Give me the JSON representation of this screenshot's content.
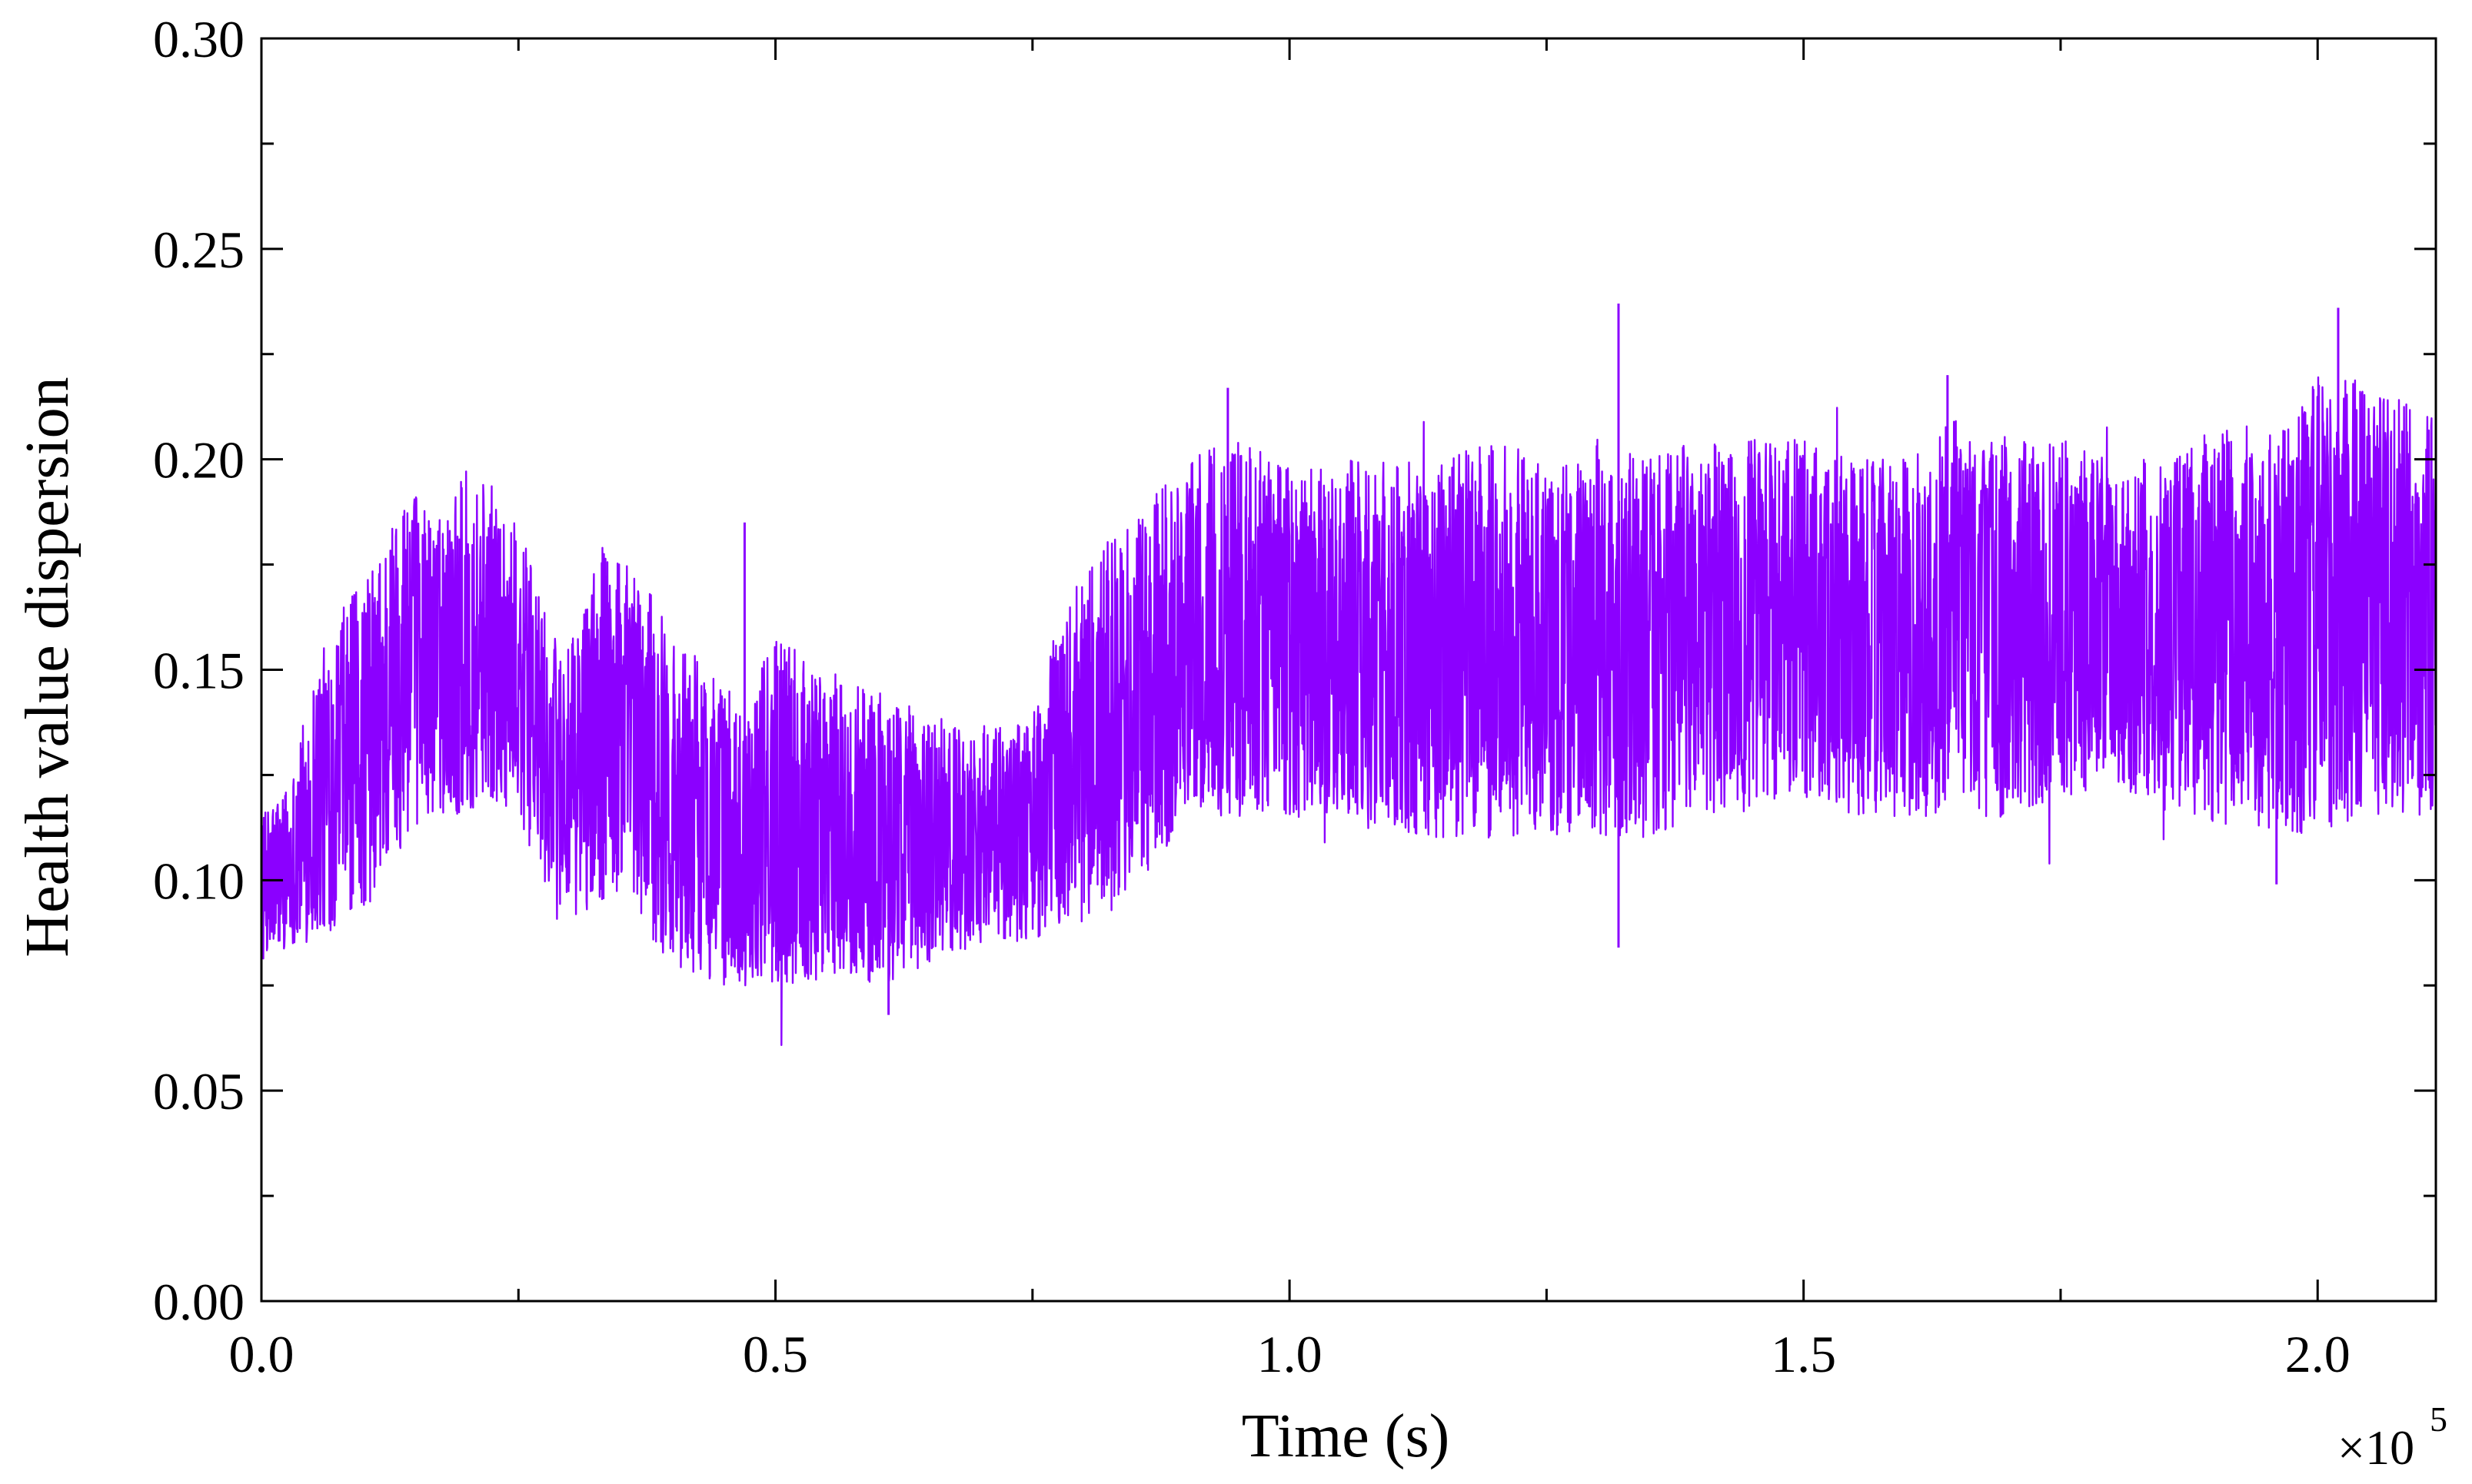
{
  "chart_data": {
    "type": "line",
    "title": "",
    "xlabel": "Time (s)",
    "ylabel": "Health value dispersion",
    "x_multiplier_base": "×10",
    "x_multiplier_exponent": "5",
    "xlim": [
      0,
      2.115
    ],
    "ylim": [
      0,
      0.3
    ],
    "x_ticks": [
      0.0,
      0.5,
      1.0,
      1.5,
      2.0
    ],
    "x_tick_labels": [
      "0.0",
      "0.5",
      "1.0",
      "1.5",
      "2.0"
    ],
    "y_ticks": [
      0.0,
      0.05,
      0.1,
      0.15,
      0.2,
      0.25,
      0.3
    ],
    "y_tick_labels": [
      "0.00",
      "0.05",
      "0.10",
      "0.15",
      "0.20",
      "0.25",
      "0.30"
    ],
    "grid": false,
    "legend": "none",
    "series": [
      {
        "color": "#8B00FF",
        "envelope": {
          "x": [
            0.0,
            0.03,
            0.05,
            0.08,
            0.11,
            0.14,
            0.17,
            0.2,
            0.22,
            0.25,
            0.28,
            0.3,
            0.33,
            0.36,
            0.4,
            0.44,
            0.47,
            0.5,
            0.55,
            0.6,
            0.65,
            0.7,
            0.75,
            0.78,
            0.82,
            0.85,
            0.88,
            0.9,
            0.95,
            1.0,
            1.05,
            1.1,
            1.15,
            1.2,
            1.25,
            1.3,
            1.35,
            1.4,
            1.45,
            1.5,
            1.55,
            1.6,
            1.65,
            1.7,
            1.75,
            1.8,
            1.85,
            1.88,
            1.92,
            1.96,
            2.0,
            2.04,
            2.08,
            2.115
          ],
          "upper": [
            0.115,
            0.125,
            0.15,
            0.165,
            0.175,
            0.195,
            0.185,
            0.198,
            0.195,
            0.185,
            0.16,
            0.155,
            0.18,
            0.175,
            0.16,
            0.15,
            0.14,
            0.16,
            0.15,
            0.145,
            0.14,
            0.135,
            0.14,
            0.165,
            0.18,
            0.185,
            0.195,
            0.2,
            0.205,
            0.2,
            0.2,
            0.2,
            0.2,
            0.205,
            0.2,
            0.205,
            0.2,
            0.205,
            0.205,
            0.205,
            0.2,
            0.2,
            0.21,
            0.205,
            0.205,
            0.2,
            0.2,
            0.205,
            0.21,
            0.205,
            0.22,
            0.22,
            0.215,
            0.21
          ],
          "lower": [
            0.08,
            0.085,
            0.085,
            0.09,
            0.095,
            0.11,
            0.115,
            0.115,
            0.12,
            0.115,
            0.095,
            0.09,
            0.095,
            0.09,
            0.08,
            0.075,
            0.075,
            0.075,
            0.075,
            0.075,
            0.08,
            0.085,
            0.085,
            0.09,
            0.09,
            0.095,
            0.105,
            0.115,
            0.115,
            0.115,
            0.115,
            0.11,
            0.11,
            0.11,
            0.11,
            0.11,
            0.11,
            0.115,
            0.115,
            0.12,
            0.115,
            0.115,
            0.115,
            0.115,
            0.12,
            0.12,
            0.12,
            0.115,
            0.11,
            0.11,
            0.11,
            0.115,
            0.115,
            0.115
          ]
        },
        "spikes": [
          {
            "x": 0.47,
            "value": 0.185
          },
          {
            "x": 0.61,
            "value": 0.068
          },
          {
            "x": 0.94,
            "value": 0.217
          },
          {
            "x": 1.32,
            "value": 0.237
          },
          {
            "x": 1.32,
            "value": 0.084
          },
          {
            "x": 1.64,
            "value": 0.22
          },
          {
            "x": 2.02,
            "value": 0.236
          },
          {
            "x": 1.96,
            "value": 0.099
          }
        ]
      }
    ]
  }
}
